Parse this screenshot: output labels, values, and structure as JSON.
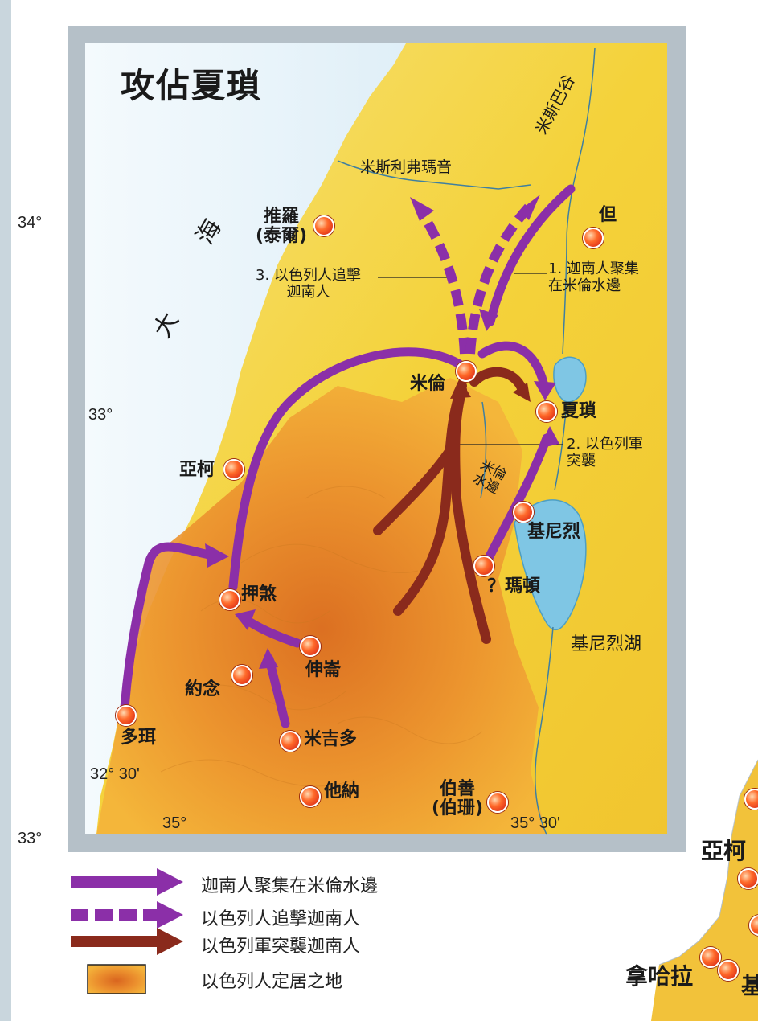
{
  "map": {
    "title": "攻佔夏瑣",
    "lat_labels": [
      "34°",
      "33°",
      "32° 30'",
      "33°"
    ],
    "lon_labels": [
      "35°",
      "35° 30'"
    ],
    "water": {
      "great_sea_char1": "大",
      "great_sea_char2": "海",
      "lake_name": "基尼烈湖",
      "river_mispehhor": "米斯利弗瑪音",
      "valley_mizpah": "米斯巴谷",
      "waters_merom": "米倫\n水邊"
    },
    "places": {
      "tyre": "推羅\n(泰爾)",
      "dan": "但",
      "merom": "米倫",
      "hazor": "夏瑣",
      "acco": "亞柯",
      "chinnereth": "基尼烈",
      "madon": "？瑪頓",
      "achshaph": "押煞",
      "jokneam": "約念",
      "shimron": "伸崙",
      "dor": "多珥",
      "megiddo": "米吉多",
      "taanach": "他納",
      "bethshean": "伯善\n(伯珊)"
    },
    "notes": {
      "note1": "1. 迦南人聚集\n在米倫水邊",
      "note2": "2. 以色列軍\n突襲",
      "note3": "3. 以色列人追擊\n迦南人"
    }
  },
  "legend": {
    "item1": "迦南人聚集在米倫水邊",
    "item2": "以色列人追擊迦南人",
    "item3": "以色列軍突襲迦南人",
    "item4": "以色列人定居之地"
  },
  "inset": {
    "acco": "亞柯",
    "naharai": "拿哈拉",
    "partial": "基"
  },
  "colors": {
    "sea": "#d8edf7",
    "land": "#f5d33a",
    "settled": "#e88a2a",
    "purple": "#8b2fa8",
    "dark_red": "#8a2a1c",
    "frame": "#a7b3bd"
  }
}
